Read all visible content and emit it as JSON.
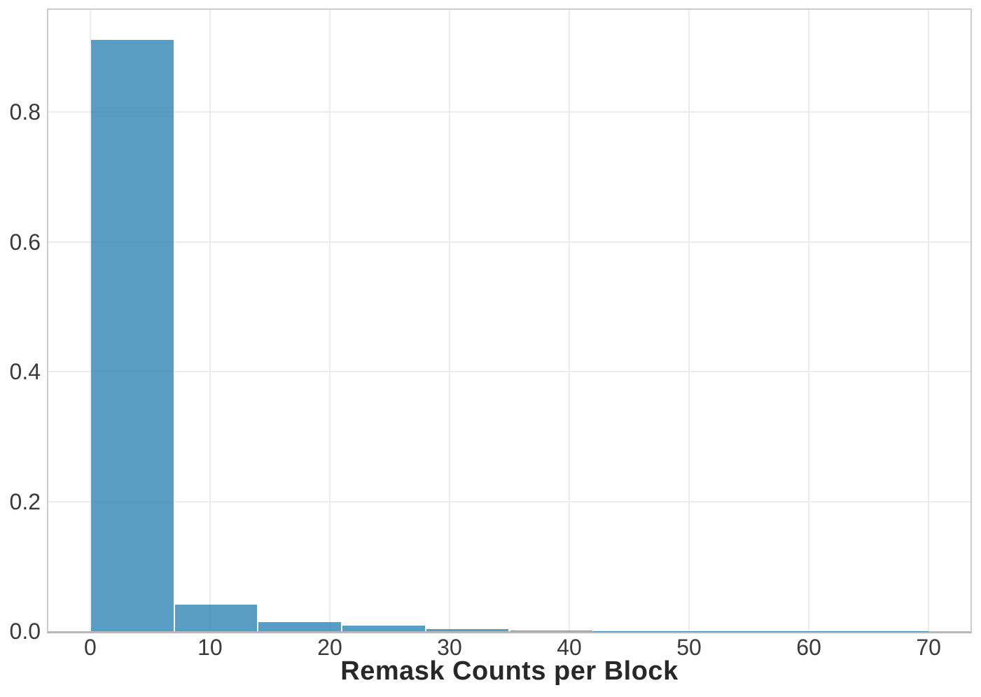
{
  "chart_data": {
    "type": "bar",
    "subtype": "histogram",
    "xlabel": "Remask Counts per Block",
    "ylabel": "",
    "bin_edges": [
      0,
      7,
      14,
      21,
      28,
      35,
      42,
      49,
      56,
      63,
      70
    ],
    "values": [
      0.912,
      0.041,
      0.014,
      0.009,
      0.003,
      0.001,
      0.0003,
      0.0002,
      0.0001,
      0.0001
    ],
    "x_ticks": [
      0,
      10,
      20,
      30,
      40,
      50,
      60,
      70
    ],
    "x_tick_labels": [
      "0",
      "10",
      "20",
      "30",
      "40",
      "50",
      "60",
      "70"
    ],
    "y_ticks": [
      0.0,
      0.2,
      0.4,
      0.6,
      0.8
    ],
    "y_tick_labels": [
      "0.0",
      "0.2",
      "0.4",
      "0.6",
      "0.8"
    ],
    "xlim": [
      -3.5,
      73.5
    ],
    "ylim": [
      0,
      0.958
    ],
    "grid": true,
    "legend": false,
    "colors": {
      "bar_fill": "rgba(49,132,179,0.8)",
      "bar_fill_hex": "#5a9dc2",
      "bar_edge": "rgba(255,255,255,0.95)",
      "grid_color": "#ececec",
      "spine_color": "#cccccc",
      "axis_line_color": "#b6b6b6",
      "tick_text_color": "#3a3a3a",
      "label_text_color": "#282828",
      "background": "#ffffff"
    }
  }
}
